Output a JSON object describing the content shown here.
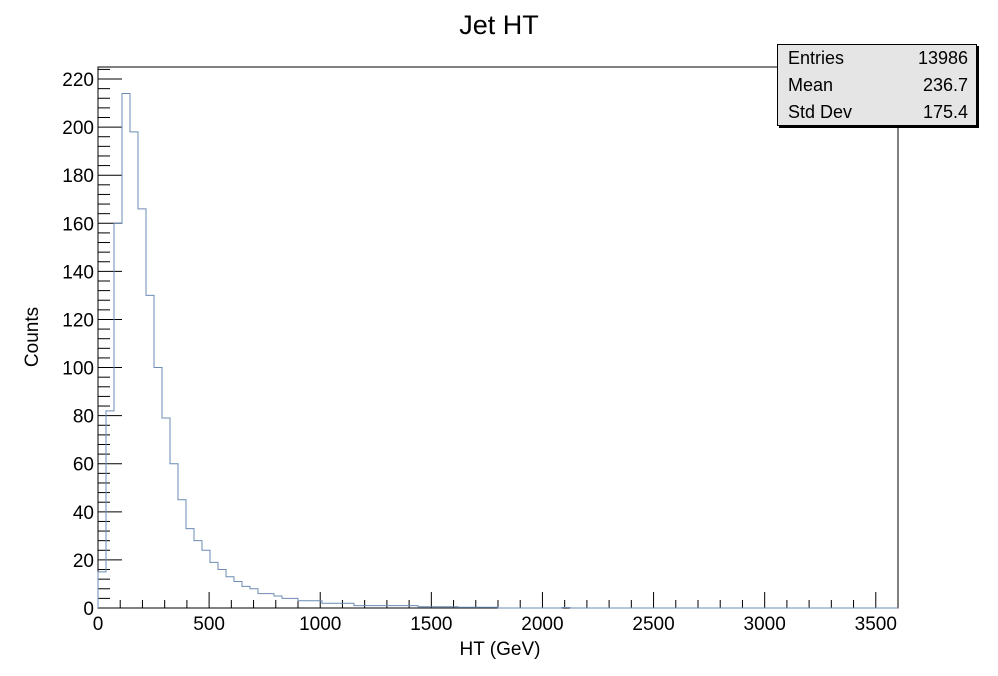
{
  "chart_data": {
    "type": "histogram",
    "title": "Jet HT",
    "xlabel": "HT (GeV)",
    "ylabel": "Counts",
    "xlim": [
      0,
      3600
    ],
    "ylim": [
      0,
      225
    ],
    "bin_width": 36,
    "xticks": [
      0,
      500,
      1000,
      1500,
      2000,
      2500,
      3000,
      3500
    ],
    "yticks": [
      0,
      20,
      40,
      60,
      80,
      100,
      120,
      140,
      160,
      180,
      200,
      220
    ],
    "values": [
      15,
      82,
      160,
      214,
      198,
      166,
      130,
      100,
      79,
      60,
      45,
      33,
      28,
      24,
      19,
      16,
      13,
      11,
      9,
      8,
      6,
      6,
      5,
      4,
      4,
      3,
      3,
      3,
      2,
      2,
      2,
      2,
      1,
      1,
      1,
      1,
      1,
      1,
      1,
      1,
      0.5,
      0.5,
      0.5,
      0.5,
      0.5,
      0.3,
      0.3,
      0.3,
      0.3,
      0.3,
      0,
      0,
      0,
      0,
      0,
      0,
      0,
      0,
      0.2,
      0,
      0,
      0,
      0,
      0,
      0,
      0,
      0,
      0,
      0,
      0,
      0,
      0,
      0,
      0,
      0,
      0,
      0,
      0,
      0,
      0,
      0,
      0,
      0,
      0,
      0,
      0,
      0,
      0,
      0,
      0,
      0,
      0,
      0,
      0,
      0,
      0,
      0,
      0,
      0,
      0
    ],
    "line_color": "#6c8cb5",
    "stats": {
      "entries_label": "Entries",
      "entries": "13986",
      "mean_label": "Mean",
      "mean": "236.7",
      "std_label": "Std Dev",
      "std": "175.4"
    }
  }
}
